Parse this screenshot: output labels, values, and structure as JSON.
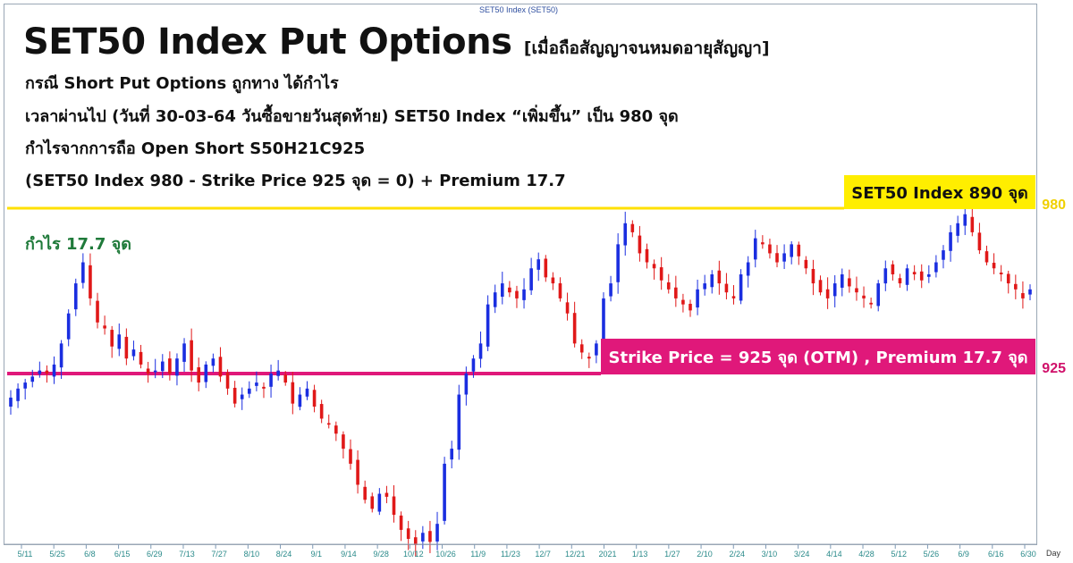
{
  "header": {
    "caption": "SET50 Index (SET50)",
    "title": "SET50 Index Put Options",
    "title_note": "[เมื่อถือสัญญาจนหมดอายุสัญญา]",
    "lines": [
      "กรณี Short Put Options ถูกทาง ได้กำไร",
      "เวลาผ่านไป (วันที่ 30-03-64 วันซื้อขายวันสุดท้าย) SET50 Index “เพิ่มขึ้น” เป็น 980 จุด",
      "กำไรจากการถือ Open Short S50H21C925",
      "(SET50 Index 980 - Strike Price 925 จุด = 0) + Premium 17.7"
    ]
  },
  "annotations": {
    "yellow_banner": "SET50 Index 890 จุด",
    "pink_banner": "Strike Price = 925 จุด (OTM) , Premium 17.7 จุด",
    "profit_label": "กำไร 17.7 จุด",
    "level_980_label": "980",
    "level_925_label": "925",
    "day_label": "Day"
  },
  "colors": {
    "up_candle": "#1a2ee0",
    "down_candle": "#e01818",
    "line_980": "#ffe000",
    "line_925": "#e0187a",
    "profit_text": "#1f7a3a",
    "axis_text": "#2a8a8a"
  },
  "chart_data": {
    "type": "candlestick",
    "title": "SET50 Index (SET50)",
    "reference_lines": [
      {
        "value": 980,
        "label": "980",
        "color": "#ffe000"
      },
      {
        "value": 925,
        "label": "925",
        "color": "#e0187a"
      }
    ],
    "x_tick_labels": [
      "5/11",
      "5/25",
      "6/8",
      "6/15",
      "6/29",
      "7/13",
      "7/27",
      "8/10",
      "8/24",
      "9/1",
      "9/14",
      "9/28",
      "10/12",
      "10/26",
      "11/9",
      "11/23",
      "12/7",
      "12/21",
      "2021",
      "1/13",
      "1/27",
      "2/10",
      "2/24",
      "3/10",
      "3/24",
      "4/14",
      "4/28",
      "5/12",
      "5/26",
      "6/9",
      "6/16",
      "6/30"
    ],
    "x_label": "Day",
    "y_reference_range": [
      925,
      980
    ],
    "closes": [
      917,
      920,
      922,
      924,
      926,
      925,
      928,
      935,
      945,
      955,
      962,
      950,
      942,
      940,
      934,
      938,
      930,
      933,
      928,
      925,
      926,
      929,
      925,
      930,
      935,
      926,
      922,
      928,
      930,
      924,
      920,
      915,
      918,
      920,
      922,
      920,
      925,
      926,
      922,
      915,
      918,
      920,
      914,
      910,
      908,
      905,
      900,
      895,
      888,
      883,
      880,
      885,
      884,
      878,
      873,
      870,
      868,
      872,
      869,
      875,
      895,
      900,
      918,
      925,
      930,
      935,
      948,
      952,
      955,
      952,
      950,
      953,
      960,
      963,
      957,
      955,
      950,
      945,
      935,
      932,
      930,
      935,
      950,
      955,
      968,
      975,
      972,
      965,
      962,
      960,
      956,
      953,
      950,
      948,
      946,
      953,
      955,
      958,
      955,
      952,
      950,
      958,
      962,
      970,
      968,
      965,
      962,
      965,
      968,
      964,
      960,
      955,
      952,
      950,
      955,
      958,
      954,
      952,
      950,
      948,
      955,
      960,
      958,
      955,
      960,
      958,
      956,
      958,
      962,
      966,
      972,
      975,
      978,
      972,
      966,
      962,
      960,
      958,
      955,
      953,
      950,
      953
    ]
  }
}
